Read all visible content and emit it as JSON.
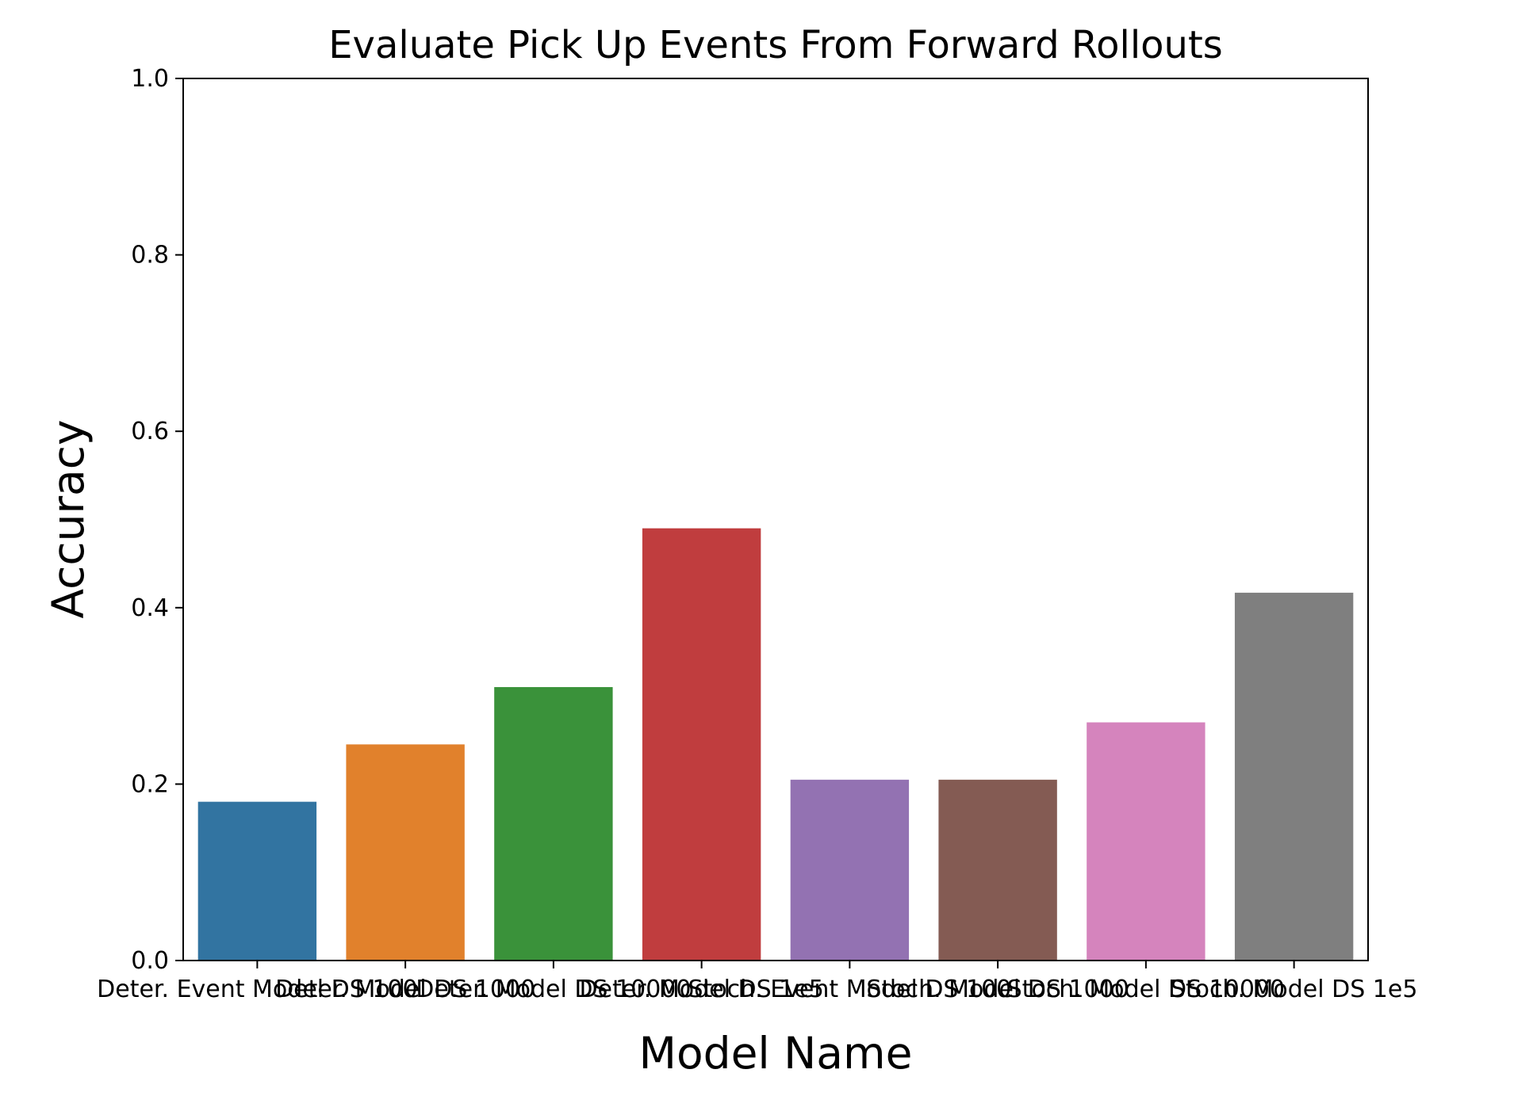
{
  "chart_data": {
    "type": "bar",
    "title": "Evaluate Pick Up Events From Forward Rollouts",
    "xlabel": "Model Name",
    "ylabel": "Accuracy",
    "ylim": [
      0,
      1
    ],
    "yticks": [
      "0.0",
      "0.2",
      "0.4",
      "0.6",
      "0.8",
      "1.0"
    ],
    "grid": false,
    "categories": [
      "Deter. Event Model DS 100",
      "Deter. Model DS 1000",
      "Deter. Model DS 10000",
      "Deter. Model DS 1e5",
      "Stoch. Event Model DS 100",
      "Stoch. Model DS 1000",
      "Stoch. Model DS 10000",
      "Stoch. Model DS 1e5"
    ],
    "values": [
      0.18,
      0.245,
      0.31,
      0.49,
      0.205,
      0.205,
      0.27,
      0.417
    ],
    "colors": [
      "#3274a1",
      "#e1812c",
      "#3a923a",
      "#c03d3e",
      "#9372b2",
      "#845b53",
      "#d584bd",
      "#7f7f7f"
    ]
  }
}
